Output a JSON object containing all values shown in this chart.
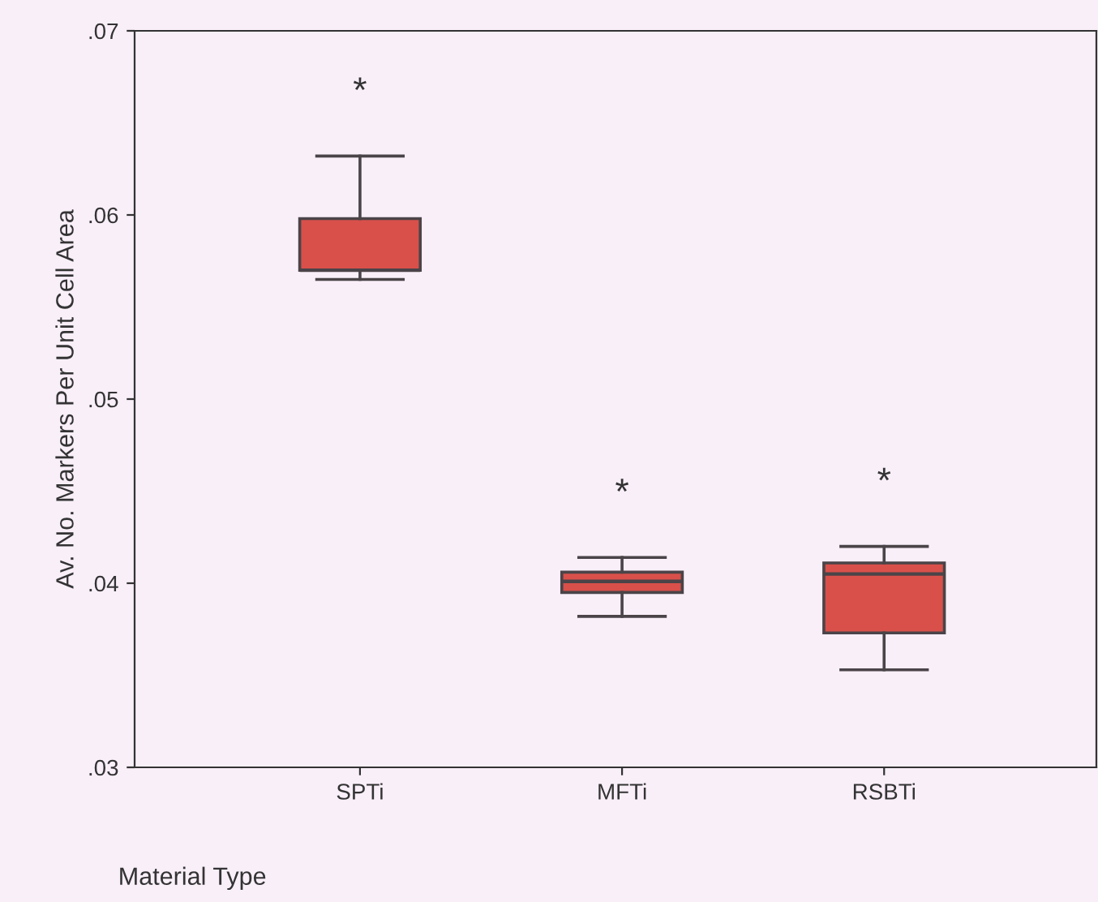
{
  "chart_data": {
    "type": "box",
    "xlabel": "Material Type",
    "ylabel": "Av. No. Markers Per Unit Cell Area",
    "categories": [
      "SPTi",
      "MFTi",
      "RSBTi"
    ],
    "series": [
      {
        "color": "#d9504a",
        "boxes": [
          {
            "low": 0.0565,
            "q1": 0.057,
            "median": 0.057,
            "q3": 0.0598,
            "high": 0.0632
          },
          {
            "low": 0.0382,
            "q1": 0.0395,
            "median": 0.0401,
            "q3": 0.0406,
            "high": 0.0414
          },
          {
            "low": 0.0353,
            "q1": 0.0373,
            "median": 0.0405,
            "q3": 0.0411,
            "high": 0.042
          }
        ]
      }
    ],
    "ylim": [
      0.03,
      0.07
    ],
    "yticks": [
      {
        "value": 0.03,
        "label": ".03"
      },
      {
        "value": 0.04,
        "label": ".04"
      },
      {
        "value": 0.05,
        "label": ".05"
      },
      {
        "value": 0.06,
        "label": ".06"
      },
      {
        "value": 0.07,
        "label": ".07"
      }
    ],
    "annotations": [
      "*",
      "*",
      "*"
    ],
    "grid": false,
    "legend": false
  }
}
